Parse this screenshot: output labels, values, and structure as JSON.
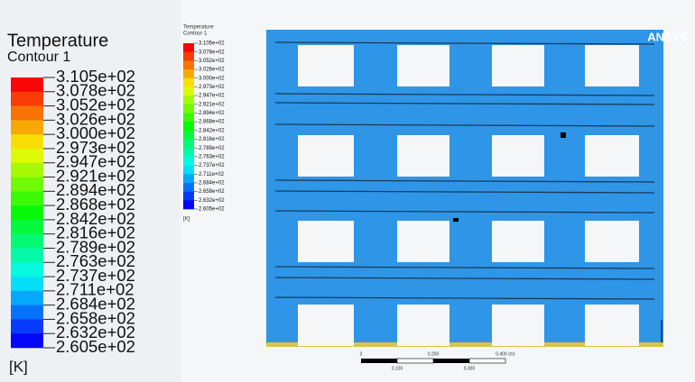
{
  "legend": {
    "title": "Temperature",
    "subtitle": "Contour 1",
    "labels": [
      "3.105e+02",
      "3.078e+02",
      "3.052e+02",
      "3.026e+02",
      "3.000e+02",
      "2.973e+02",
      "2.947e+02",
      "2.921e+02",
      "2.894e+02",
      "2.868e+02",
      "2.842e+02",
      "2.816e+02",
      "2.789e+02",
      "2.763e+02",
      "2.737e+02",
      "2.711e+02",
      "2.684e+02",
      "2.658e+02",
      "2.632e+02",
      "2.605e+02"
    ],
    "unit": "[K]"
  },
  "viewport": {
    "logo": "ANSYS",
    "scale_bar": {
      "top_labels": [
        "0",
        "0.200",
        "0.400 (m)"
      ],
      "bottom_labels": [
        "0.100",
        "0.300"
      ]
    }
  }
}
